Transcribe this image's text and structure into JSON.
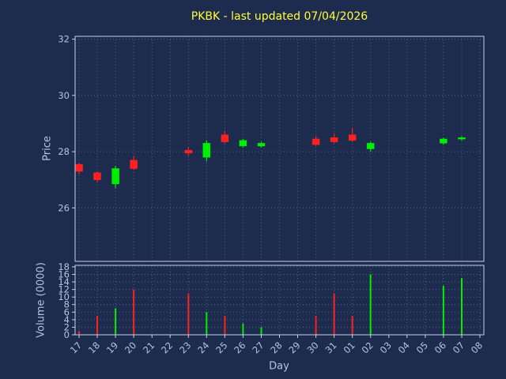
{
  "chart_data": {
    "type": "candlestick",
    "title": "PKBK - last updated 07/04/2026",
    "xlabel": "Day",
    "price_ylabel": "Price",
    "volume_ylabel": "Volume (0000)",
    "price_ylim": [
      24.1,
      32.1
    ],
    "price_yticks": [
      26,
      28,
      30,
      32
    ],
    "volume_ylim": [
      0,
      18.4
    ],
    "volume_yticks": [
      0,
      2,
      4,
      6,
      8,
      10,
      12,
      14,
      16,
      18
    ],
    "grid": true,
    "colors": {
      "up": "#00ee00",
      "down": "#ff2020",
      "title": "#ffff33",
      "labels": "#b4c4dc",
      "grid": "#5a6d92",
      "spine": "#c6d0e0",
      "background": "#1d2c4e"
    },
    "days": [
      {
        "label": "17",
        "open": 27.55,
        "high": 27.6,
        "low": 27.2,
        "close": 27.3,
        "volume": 1
      },
      {
        "label": "18",
        "open": 27.25,
        "high": 27.3,
        "low": 26.9,
        "close": 27.0,
        "volume": 5
      },
      {
        "label": "19",
        "open": 26.85,
        "high": 27.5,
        "low": 26.7,
        "close": 27.4,
        "volume": 7
      },
      {
        "label": "20",
        "open": 27.7,
        "high": 27.85,
        "low": 27.35,
        "close": 27.4,
        "volume": 12
      },
      {
        "label": "21"
      },
      {
        "label": "22"
      },
      {
        "label": "23",
        "open": 28.05,
        "high": 28.15,
        "low": 27.85,
        "close": 27.95,
        "volume": 11
      },
      {
        "label": "24",
        "open": 27.8,
        "high": 28.4,
        "low": 27.65,
        "close": 28.3,
        "volume": 6
      },
      {
        "label": "25",
        "open": 28.6,
        "high": 28.75,
        "low": 28.3,
        "close": 28.35,
        "volume": 5
      },
      {
        "label": "26",
        "open": 28.2,
        "high": 28.45,
        "low": 28.15,
        "close": 28.4,
        "volume": 3
      },
      {
        "label": "27",
        "open": 28.2,
        "high": 28.35,
        "low": 28.15,
        "close": 28.3,
        "volume": 2
      },
      {
        "label": "28"
      },
      {
        "label": "29"
      },
      {
        "label": "30",
        "open": 28.45,
        "high": 28.55,
        "low": 28.2,
        "close": 28.25,
        "volume": 5
      },
      {
        "label": "31",
        "open": 28.5,
        "high": 28.65,
        "low": 28.3,
        "close": 28.35,
        "volume": 11
      },
      {
        "label": "01",
        "open": 28.6,
        "high": 28.85,
        "low": 28.35,
        "close": 28.4,
        "volume": 5
      },
      {
        "label": "02",
        "open": 28.1,
        "high": 28.35,
        "low": 28.0,
        "close": 28.3,
        "volume": 16
      },
      {
        "label": "03"
      },
      {
        "label": "04"
      },
      {
        "label": "05"
      },
      {
        "label": "06",
        "open": 28.3,
        "high": 28.5,
        "low": 28.25,
        "close": 28.45,
        "volume": 13
      },
      {
        "label": "07",
        "open": 28.45,
        "high": 28.55,
        "low": 28.4,
        "close": 28.5,
        "volume": 15
      },
      {
        "label": "08"
      }
    ]
  }
}
